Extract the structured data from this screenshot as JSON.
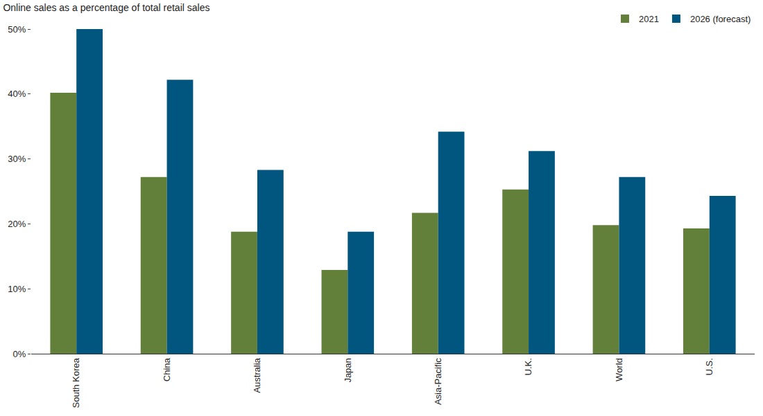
{
  "chart_data": {
    "type": "bar",
    "title": "Online sales as a percentage of total retail sales",
    "categories": [
      "South Korea",
      "China",
      "Australia",
      "Japan",
      "Asia-Pacific",
      "U.K.",
      "World",
      "U.S."
    ],
    "series": [
      {
        "name": "2021",
        "color": "#62803a",
        "values": [
          40.2,
          27.2,
          18.8,
          12.9,
          21.7,
          25.3,
          19.8,
          19.3
        ]
      },
      {
        "name": "2026 (forecast)",
        "color": "#00567e",
        "values": [
          50.0,
          42.2,
          28.3,
          18.8,
          34.2,
          31.2,
          27.2,
          24.3
        ]
      }
    ],
    "ylim": [
      0,
      50
    ],
    "yticks": [
      {
        "value": 0,
        "label": "0%"
      },
      {
        "value": 10,
        "label": "10%"
      },
      {
        "value": 20,
        "label": "20%"
      },
      {
        "value": 30,
        "label": "30%"
      },
      {
        "value": 40,
        "label": "40%"
      },
      {
        "value": 50,
        "label": "50%"
      }
    ],
    "grid": false,
    "legend": "top right"
  }
}
